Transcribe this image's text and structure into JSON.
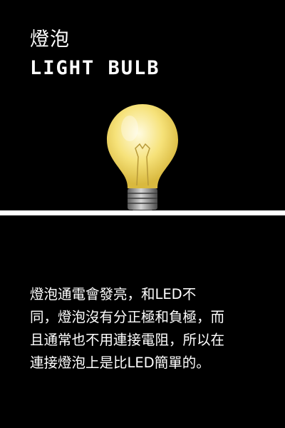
{
  "header": {
    "title_zh": "燈泡",
    "title_en": "LIGHT BULB"
  },
  "illustration": {
    "icon": "light-bulb-icon",
    "glow_color": "#f6e27a",
    "base_color": "#9a9a9a"
  },
  "body": {
    "description": "燈泡通電會發亮，和LED不\n同，燈泡沒有分正極和負極，而\n且通常也不用連接電阻，所以在\n連接燈泡上是比LED簡單的。"
  },
  "colors": {
    "background": "#000000",
    "text": "#ffffff",
    "divider": "#ffffff"
  }
}
